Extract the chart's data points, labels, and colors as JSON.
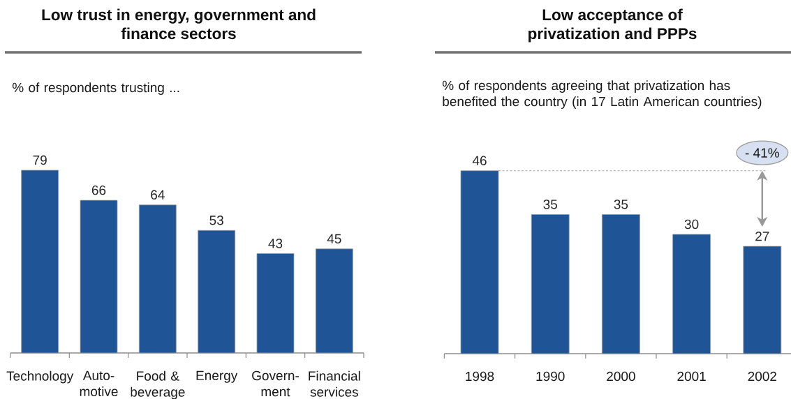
{
  "chart_data": [
    {
      "type": "bar",
      "title": "Low trust in energy, government and finance sectors",
      "subtitle": "% of respondents trusting ...",
      "categories": [
        "Technology",
        "Auto-motive",
        "Food & beverage",
        "Energy",
        "Govern-ment",
        "Financial services"
      ],
      "values": [
        79,
        66,
        64,
        53,
        43,
        45
      ],
      "color": "#1f5597",
      "data_labels": true
    },
    {
      "type": "bar",
      "title": "Low acceptance of privatization and PPPs",
      "subtitle": "% of respondents agreeing that privatization has benefited the country (in 17 Latin American countries)",
      "categories": [
        "1998",
        "1990",
        "2000",
        "2001",
        "2002"
      ],
      "values": [
        46,
        35,
        35,
        30,
        27
      ],
      "color": "#1f5597",
      "data_labels": true,
      "ref_lines": [
        {
          "axis": "y",
          "value": 46,
          "line_style": "dashed",
          "color": "#a6a6a6"
        }
      ],
      "annotations": [
        {
          "text": "- 41%",
          "x": "2002",
          "y": 46
        }
      ]
    }
  ]
}
